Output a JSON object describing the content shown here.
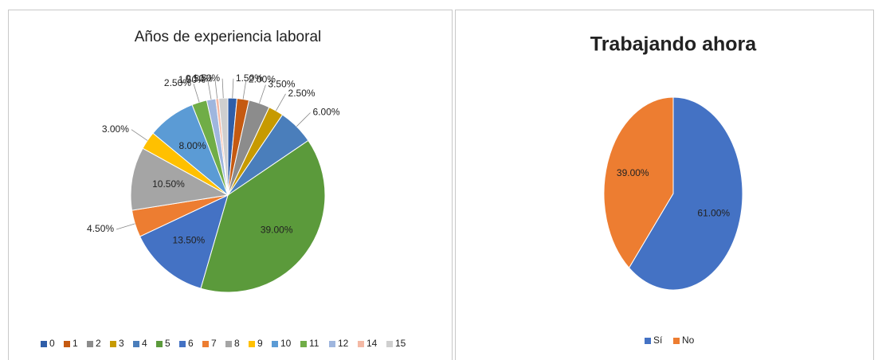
{
  "chart_data": [
    {
      "type": "pie",
      "title": "Años de experiencia laboral",
      "categories": [
        "0",
        "1",
        "2",
        "3",
        "4",
        "5",
        "6",
        "7",
        "8",
        "9",
        "10",
        "11",
        "12",
        "14",
        "15"
      ],
      "values": [
        1.5,
        2,
        3.5,
        2.5,
        6,
        39,
        13.5,
        4.5,
        10.5,
        3,
        8,
        2.5,
        1.5,
        0.5,
        1.5
      ],
      "value_labels": [
        "1.50%",
        "2.00%",
        "3.50%",
        "2.50%",
        "6.00%",
        "39.00%",
        "13.50%",
        "4.50%",
        "10.50%",
        "3.00%",
        "8.00%",
        "2.50%",
        "1.50%",
        "0.50%",
        "1.50%"
      ],
      "colors": [
        "#2f5ea8",
        "#c55a11",
        "#8c8c8c",
        "#c79a00",
        "#4a7ebb",
        "#5b9a3b",
        "#4472c4",
        "#ed7d31",
        "#a5a5a5",
        "#ffc000",
        "#5b9bd5",
        "#70ad47",
        "#9fb6de",
        "#f4b9a5",
        "#cfcfcf"
      ],
      "legend": "bottom"
    },
    {
      "type": "pie",
      "title": "Trabajando ahora",
      "categories": [
        "Sí",
        "No"
      ],
      "values": [
        61,
        39
      ],
      "value_labels": [
        "61.00%",
        "39.00%"
      ],
      "colors": [
        "#4472c4",
        "#ed7d31"
      ],
      "legend": "bottom"
    }
  ]
}
